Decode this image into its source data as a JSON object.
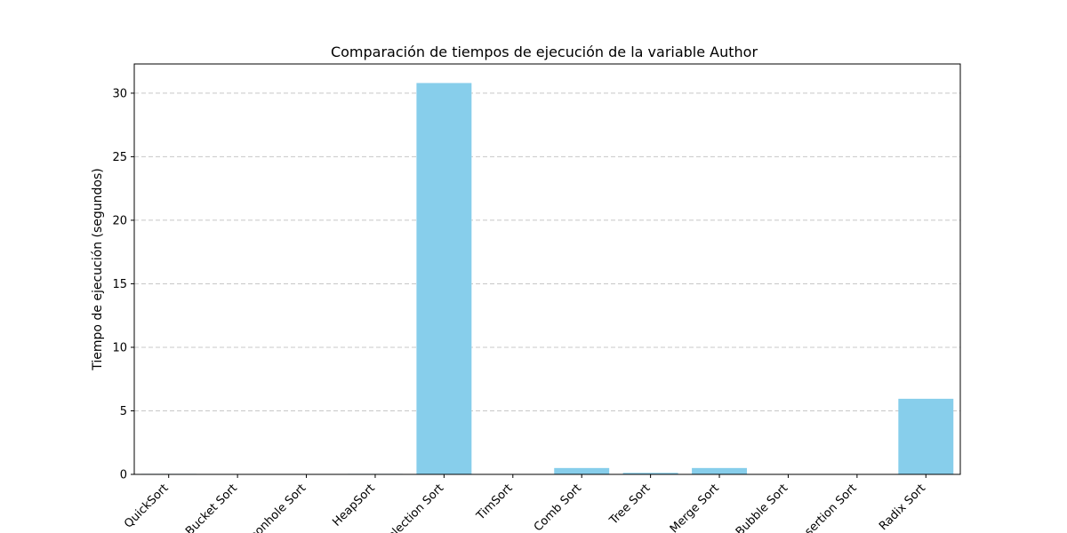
{
  "chart_data": {
    "type": "bar",
    "title": "Comparación de tiempos de ejecución de la variable Author",
    "xlabel": "",
    "ylabel": "Tiempo de ejecución (segundos)",
    "categories": [
      "QuickSort",
      "Bucket Sort",
      "Pigeonhole Sort",
      "HeapSort",
      "Selection Sort",
      "TimSort",
      "Comb Sort",
      "Tree Sort",
      "Merge Sort",
      "Bubble Sort",
      "Insertion Sort",
      "Radix Sort"
    ],
    "values": [
      0.04,
      0.01,
      0.01,
      0.04,
      30.8,
      0.01,
      0.5,
      0.12,
      0.5,
      0.01,
      0.01,
      5.95
    ],
    "ylim": [
      0,
      32.3
    ],
    "yticks": [
      0,
      5,
      10,
      15,
      20,
      25,
      30
    ],
    "grid": "y-dashed",
    "bar_color": "#87ceeb",
    "xtick_rotation_deg": 45
  }
}
